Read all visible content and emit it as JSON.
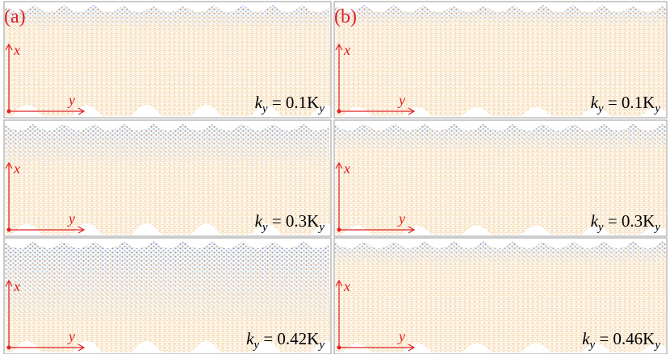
{
  "axes": {
    "x": "x",
    "y": "y"
  },
  "columns": [
    {
      "label": "(a)",
      "panels": [
        {
          "k": "k",
          "k_sub": "y",
          "value": " = 0.1K",
          "value_sub": "y"
        },
        {
          "k": "k",
          "k_sub": "y",
          "value": " = 0.3K",
          "value_sub": "y"
        },
        {
          "k": "k",
          "k_sub": "y",
          "value": " = 0.42K",
          "value_sub": "y"
        }
      ]
    },
    {
      "label": "(b)",
      "panels": [
        {
          "k": "k",
          "k_sub": "y",
          "value": " = 0.1K",
          "value_sub": "y"
        },
        {
          "k": "k",
          "k_sub": "y",
          "value": " = 0.3K",
          "value_sub": "y"
        },
        {
          "k": "k",
          "k_sub": "y",
          "value": " = 0.46K",
          "value_sub": "y"
        }
      ]
    }
  ]
}
